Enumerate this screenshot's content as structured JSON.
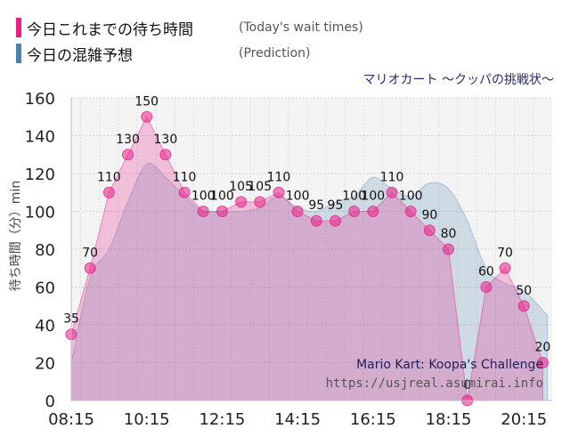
{
  "legend": {
    "today": {
      "title": "今日これまでの待ち時間",
      "subtitle": "(Today's wait times)",
      "color": "#e81e86"
    },
    "prediction": {
      "title": "今日の混雑予想",
      "subtitle": "(Prediction)",
      "color": "#4a82b0"
    }
  },
  "chart_data": {
    "type": "area",
    "title": "マリオカート ～クッパの挑戦状～",
    "ylabel": "待ち時間（分）min",
    "xlabel": "",
    "ylim": [
      0,
      160
    ],
    "yticks": [
      0,
      20,
      40,
      60,
      80,
      100,
      120,
      140,
      160
    ],
    "xrange": [
      0,
      51
    ],
    "xticks": [
      {
        "x": 0,
        "label": "08:15"
      },
      {
        "x": 8,
        "label": "10:15"
      },
      {
        "x": 16,
        "label": "12:15"
      },
      {
        "x": 24,
        "label": "14:15"
      },
      {
        "x": 32,
        "label": "16:15"
      },
      {
        "x": 40,
        "label": "18:15"
      },
      {
        "x": 48,
        "label": "20:15"
      }
    ],
    "series": [
      {
        "name": "Today's wait times",
        "color": "#e81e86",
        "x": [
          0,
          2,
          4,
          6,
          8,
          10,
          12,
          14,
          16,
          18,
          20,
          22,
          24,
          26,
          28,
          30,
          32,
          34,
          36,
          38,
          40,
          42,
          44,
          46,
          48,
          50
        ],
        "values": [
          35,
          70,
          110,
          130,
          150,
          130,
          110,
          100,
          100,
          105,
          105,
          110,
          100,
          95,
          95,
          100,
          100,
          110,
          100,
          90,
          80,
          0,
          60,
          70,
          50,
          20
        ]
      },
      {
        "name": "Prediction",
        "color": "#4a82b0",
        "x": [
          0,
          2,
          4,
          6,
          8,
          10,
          12,
          14,
          16,
          18,
          20,
          22,
          24,
          26,
          28,
          30,
          32,
          34,
          36,
          38,
          40,
          42,
          44,
          46,
          48,
          50.5
        ],
        "values": [
          20,
          65,
          80,
          105,
          125,
          118,
          108,
          100,
          100,
          100,
          102,
          108,
          102,
          100,
          105,
          108,
          118,
          112,
          108,
          115,
          112,
          95,
          70,
          62,
          58,
          45
        ]
      }
    ]
  },
  "watermark": {
    "line1": "Mario Kart: Koopa's Challenge",
    "line2": "https://usjreal.asumirai.info"
  }
}
